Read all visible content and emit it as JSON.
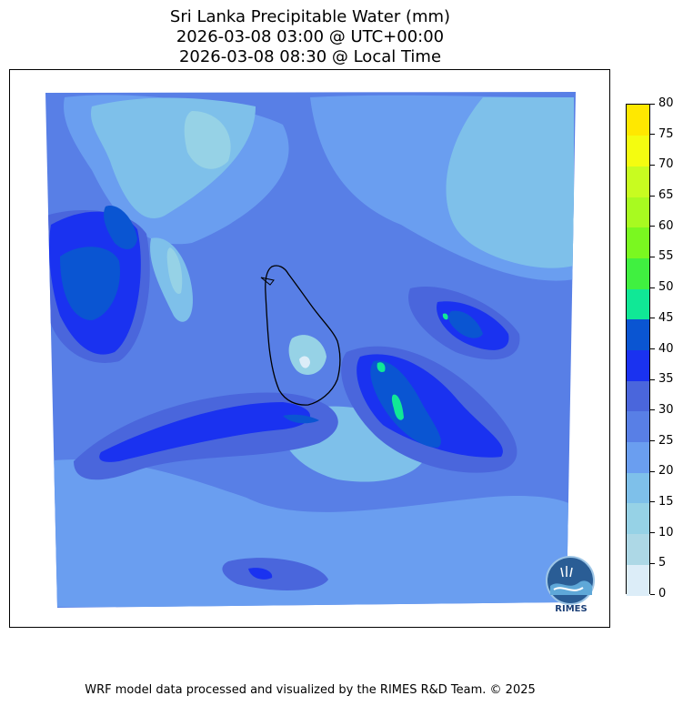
{
  "title": {
    "line1": "Sri Lanka Precipitable Water (mm)",
    "line2": "2026-03-08 03:00 @ UTC+00:00",
    "line3": "2026-03-08 08:30 @ Local Time"
  },
  "colorbar": {
    "levels": [
      "0",
      "5",
      "10",
      "15",
      "20",
      "25",
      "30",
      "35",
      "40",
      "45",
      "50",
      "55",
      "60",
      "65",
      "70",
      "75",
      "80"
    ],
    "colors": [
      "#dcedf8",
      "#add8e6",
      "#96d2e6",
      "#7ec0ea",
      "#6a9ef0",
      "#587fe6",
      "#4a66dc",
      "#1a32f0",
      "#0a55d2",
      "#10e896",
      "#40f040",
      "#7af820",
      "#a8fa20",
      "#c8fc20",
      "#f4fc10",
      "#ffe800",
      "#ffd000"
    ]
  },
  "logo": {
    "text": "RIMES",
    "icon": "rimes-logo-icon"
  },
  "footer": "WRF model data processed and visualized by the RIMES R&D Team. © 2025"
}
